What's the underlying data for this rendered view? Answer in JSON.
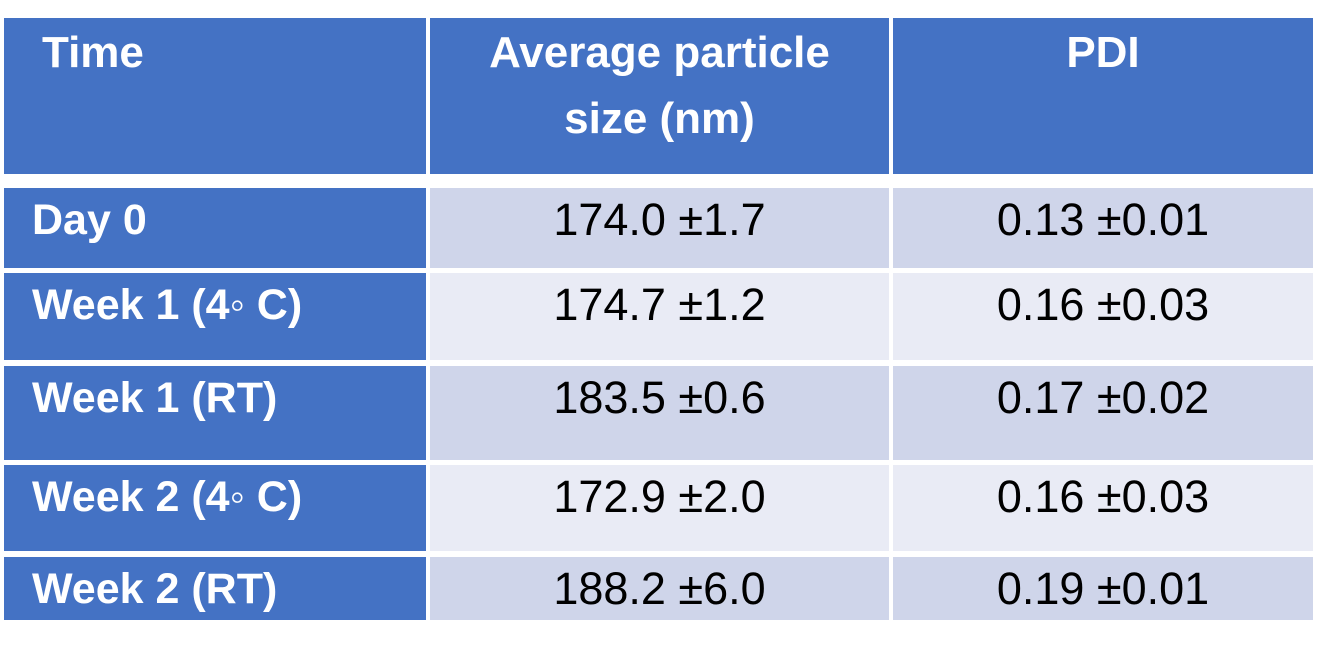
{
  "table": {
    "headers": [
      "Time",
      "Average particle size (nm)",
      "PDI"
    ],
    "rows": [
      {
        "time": "Day 0",
        "size": "174.0 ±1.7",
        "pdi": "0.13 ±0.01"
      },
      {
        "time": "Week 1 (4◦ C)",
        "size": "174.7 ±1.2",
        "pdi": "0.16 ±0.03"
      },
      {
        "time": "Week 1 (RT)",
        "size": "183.5 ±0.6",
        "pdi": "0.17 ±0.02"
      },
      {
        "time": "Week 2 (4◦ C)",
        "size": "172.9 ±2.0",
        "pdi": "0.16 ±0.03"
      },
      {
        "time": "Week 2 (RT)",
        "size": "188.2 ±6.0",
        "pdi": "0.19 ±0.01"
      }
    ]
  },
  "colors": {
    "header_bg": "#4472c4",
    "row_dark": "#cfd5ea",
    "row_light": "#e9ebf5"
  }
}
